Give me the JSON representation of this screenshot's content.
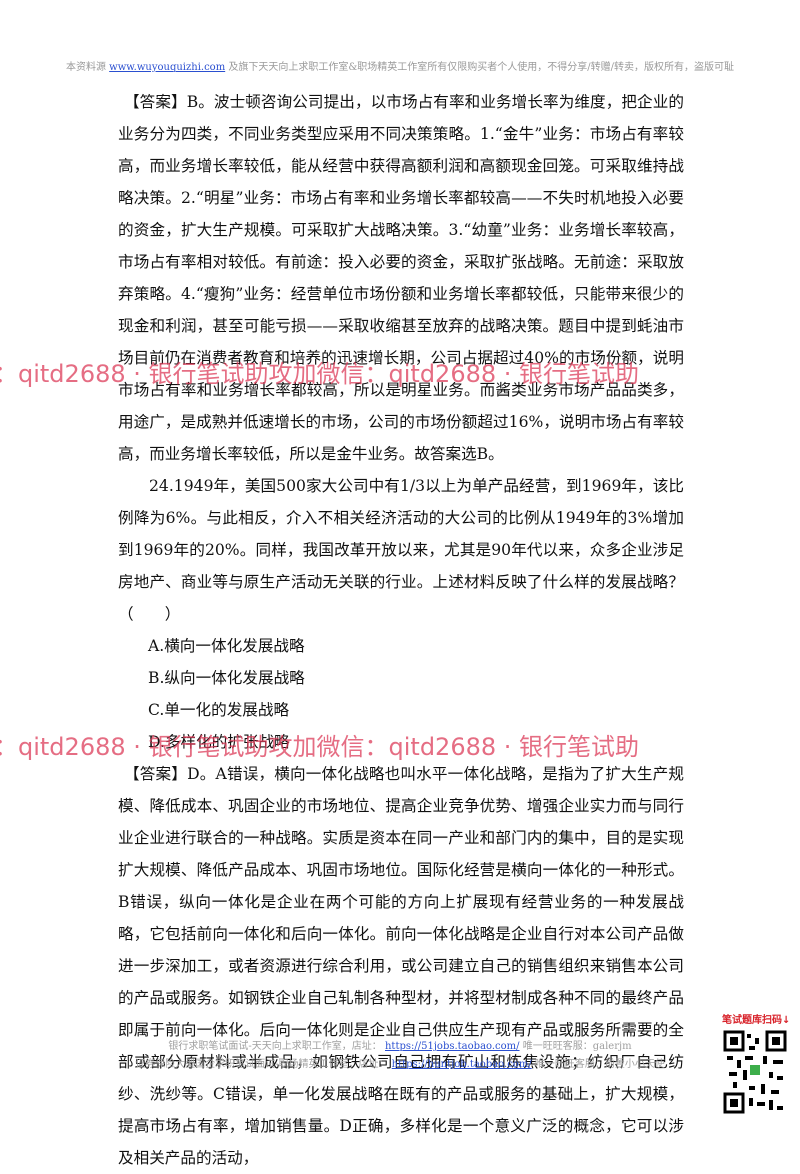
{
  "header": {
    "prefix": "本资料源 ",
    "link": "www.wuyouquizhi.com",
    "suffix": " 及旗下天天向上求职工作室&职场精英工作室所有仅限购买者个人使用，不得分享/转赠/转卖，版权所有，盗版可耻"
  },
  "paragraphs": [
    "【答案】B。波士顿咨询公司提出，以市场占有率和业务增长率为维度，把企业的业务分为四类，不同业务类型应采用不同决策策略。1.“金牛”业务：市场占有率较高，而业务增长率较低，能从经营中获得高额利润和高额现金回笼。可采取维持战略决策。2.“明星”业务：市场占有率和业务增长率都较高——不失时机地投入必要的资金，扩大生产规模。可采取扩大战略决策。3.“幼童”业务：业务增长率较高，市场占有率相对较低。有前途：投入必要的资金，采取扩张战略。无前途：采取放弃策略。4.“瘦狗”业务：经营单位市场份额和业务增长率都较低，只能带来很少的现金和利润，甚至可能亏损——采取收缩甚至放弃的战略决策。题目中提到蚝油市场目前仍在消费者教育和培养的迅速增长期，公司占据超过40%的市场份额，说明市场占有率和业务增长率都较高，所以是明星业务。而酱类业务市场产品品类多，用途广，是成熟并低速增长的市场，公司的市场份额超过16%，说明市场占有率较高，而业务增长率较低，所以是金牛业务。故答案选B。",
    "24.1949年，美国500家大公司中有1/3以上为单产品经营，到1969年，该比例降为6%。与此相反，介入不相关经济活动的大公司的比例从1949年的3%增加到1969年的20%。同样，我国改革开放以来，尤其是90年代以来，众多企业涉足房地产、商业等与原生产活动无关联的行业。上述材料反映了什么样的发展战略？（　　）",
    "【答案】D。A错误，横向一体化战略也叫水平一体化战略，是指为了扩大生产规模、降低成本、巩固企业的市场地位、提高企业竞争优势、增强企业实力而与同行业企业进行联合的一种战略。实质是资本在同一产业和部门内的集中，目的是实现扩大规模、降低产品成本、巩固市场地位。国际化经营是横向一体化的一种形式。B错误，纵向一体化是企业在两个可能的方向上扩展现有经营业务的一种发展战略，它包括前向一体化和后向一体化。前向一体化战略是企业自行对本公司产品做进一步深加工，或者资源进行综合利用，或公司建立自己的销售组织来销售本公司的产品或服务。如钢铁企业自己轧制各种型材，并将型材制成各种不同的最终产品即属于前向一体化。后向一体化则是企业自己供应生产现有产品或服务所需要的全部或部分原材料或半成品，如钢铁公司自己拥有矿山和炼焦设施；纺织厂自己纺纱、洗纱等。C错误，单一化发展战略在既有的产品或服务的基础上，扩大规模，提高市场占有率，增加销售量。D正确，多样化是一个意义广泛的概念，它可以涉及相关产品的活动，"
  ],
  "options": [
    "A.横向一体化发展战略",
    "B.纵向一体化发展战略",
    "C.单一化的发展战略",
    "D.多样化的扩张战略"
  ],
  "watermark": "：qitd2688 · 银行笔试助攻加微信：qitd2688 · 银行笔试助",
  "footer": [
    {
      "prefix": "银行求职笔试面试-天天向上求职工作室，店址： ",
      "link": "https://51jobs.taobao.com/",
      "suffix": " 唯一旺旺客服：galerjm"
    },
    {
      "prefix": "证券保险大型国企求职笔试面试-职场精英工作室，店址： ",
      "link": "https://huntjob.taobao.com/",
      "suffix": " 唯一旺旺客服：前置小小天使"
    }
  ],
  "qr_label": "笔试题库扫码↓"
}
